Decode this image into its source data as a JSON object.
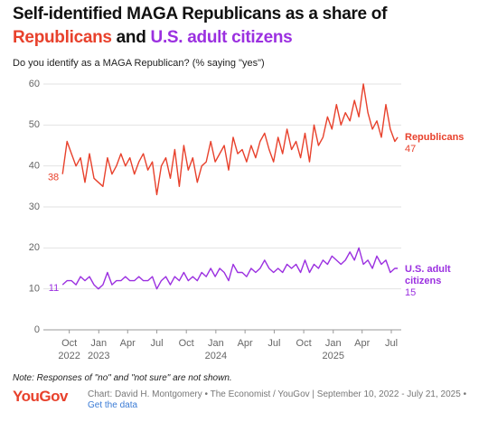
{
  "chart_data": {
    "type": "line",
    "title_line1": "Self-identified MAGA Republicans as a share of",
    "title_and": "and",
    "subtitle": "Do you identify as a MAGA Republican? (% saying \"yes\")",
    "note": "Note: Responses of \"no\" and \"not sure\" are not shown.",
    "logo": "YouGov",
    "source": "Chart: David H. Montgomery • The Economist / YouGov | September 10, 2022 - July 21, 2025 •",
    "link_text": "Get the data",
    "x": [
      "2022-09-10",
      "2022-09-24",
      "2022-10-08",
      "2022-10-22",
      "2022-11-05",
      "2022-11-19",
      "2022-12-03",
      "2022-12-17",
      "2022-12-31",
      "2023-01-14",
      "2023-01-28",
      "2023-02-11",
      "2023-02-25",
      "2023-03-11",
      "2023-03-25",
      "2023-04-08",
      "2023-04-22",
      "2023-05-06",
      "2023-05-20",
      "2023-06-03",
      "2023-06-17",
      "2023-07-01",
      "2023-07-15",
      "2023-07-29",
      "2023-08-12",
      "2023-08-26",
      "2023-09-09",
      "2023-09-23",
      "2023-10-07",
      "2023-10-21",
      "2023-11-04",
      "2023-11-18",
      "2023-12-02",
      "2023-12-16",
      "2023-12-30",
      "2024-01-13",
      "2024-01-27",
      "2024-02-10",
      "2024-02-24",
      "2024-03-09",
      "2024-03-23",
      "2024-04-06",
      "2024-04-20",
      "2024-05-04",
      "2024-05-18",
      "2024-06-01",
      "2024-06-15",
      "2024-06-29",
      "2024-07-13",
      "2024-07-27",
      "2024-08-10",
      "2024-08-24",
      "2024-09-07",
      "2024-09-21",
      "2024-10-05",
      "2024-10-19",
      "2024-11-02",
      "2024-11-16",
      "2024-11-30",
      "2024-12-14",
      "2024-12-28",
      "2025-01-11",
      "2025-01-25",
      "2025-02-08",
      "2025-02-22",
      "2025-03-08",
      "2025-03-22",
      "2025-04-05",
      "2025-04-19",
      "2025-05-03",
      "2025-05-17",
      "2025-05-31",
      "2025-06-14",
      "2025-06-28",
      "2025-07-12",
      "2025-07-21"
    ],
    "series": [
      {
        "name": "Republicans",
        "color": "#e8412c",
        "values": [
          38,
          46,
          43,
          40,
          42,
          36,
          43,
          37,
          36,
          35,
          42,
          38,
          40,
          43,
          40,
          42,
          38,
          41,
          43,
          39,
          41,
          33,
          40,
          42,
          37,
          44,
          35,
          45,
          39,
          42,
          36,
          40,
          41,
          46,
          41,
          43,
          45,
          39,
          47,
          43,
          44,
          41,
          45,
          42,
          46,
          48,
          44,
          41,
          47,
          43,
          49,
          44,
          46,
          42,
          48,
          41,
          50,
          45,
          47,
          52,
          49,
          55,
          50,
          53,
          51,
          56,
          52,
          60,
          53,
          49,
          51,
          47,
          55,
          49,
          46,
          47
        ]
      },
      {
        "name": "U.S. adult citizens",
        "color": "#9b30e0",
        "values": [
          11,
          12,
          12,
          11,
          13,
          12,
          13,
          11,
          10,
          11,
          14,
          11,
          12,
          12,
          13,
          12,
          12,
          13,
          12,
          12,
          13,
          10,
          12,
          13,
          11,
          13,
          12,
          14,
          12,
          13,
          12,
          14,
          13,
          15,
          13,
          15,
          14,
          12,
          16,
          14,
          14,
          13,
          15,
          14,
          15,
          17,
          15,
          14,
          15,
          14,
          16,
          15,
          16,
          14,
          17,
          14,
          16,
          15,
          17,
          16,
          18,
          17,
          16,
          17,
          19,
          17,
          20,
          16,
          17,
          15,
          18,
          16,
          17,
          14,
          15,
          15
        ]
      }
    ],
    "xlim": [
      "2022-08-01",
      "2025-08-01"
    ],
    "xticks": [
      {
        "value": "2022-10-01",
        "label": "Oct"
      },
      {
        "value": "2023-01-01",
        "label": "Jan"
      },
      {
        "value": "2023-04-01",
        "label": "Apr"
      },
      {
        "value": "2023-07-01",
        "label": "Jul"
      },
      {
        "value": "2023-10-01",
        "label": "Oct"
      },
      {
        "value": "2024-01-01",
        "label": "Jan"
      },
      {
        "value": "2024-04-01",
        "label": "Apr"
      },
      {
        "value": "2024-07-01",
        "label": "Jul"
      },
      {
        "value": "2024-10-01",
        "label": "Oct"
      },
      {
        "value": "2025-01-01",
        "label": "Jan"
      },
      {
        "value": "2025-04-01",
        "label": "Apr"
      },
      {
        "value": "2025-07-01",
        "label": "Jul"
      }
    ],
    "year_labels": [
      {
        "value": "2022-10-01",
        "label": "2022"
      },
      {
        "value": "2023-01-01",
        "label": "2023"
      },
      {
        "value": "2024-01-01",
        "label": "2024"
      },
      {
        "value": "2025-01-01",
        "label": "2025"
      }
    ],
    "ylim": [
      0,
      60
    ],
    "yticks": [
      0,
      10,
      20,
      30,
      40,
      50,
      60
    ],
    "grid": true
  }
}
